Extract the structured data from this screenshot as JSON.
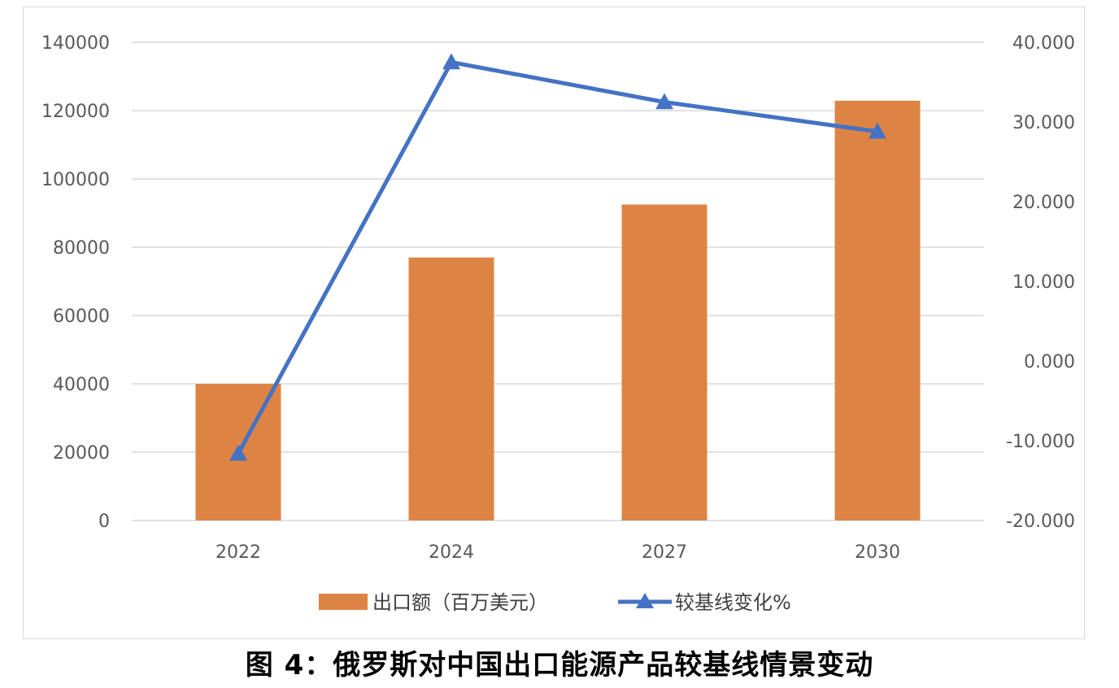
{
  "caption": "图 4：俄罗斯对中国出口能源产品较基线情景变动",
  "chart_data": {
    "type": "bar",
    "categories": [
      "2022",
      "2024",
      "2027",
      "2030"
    ],
    "series": [
      {
        "name": "出口额（百万美元）",
        "type": "bar",
        "axis": "left",
        "values": [
          40000,
          77000,
          92500,
          122900
        ],
        "color": "#DD8445"
      },
      {
        "name": "较基线变化%",
        "type": "line",
        "axis": "right",
        "marker": "triangle",
        "values": [
          -11.6,
          37.5,
          32.5,
          28.8
        ],
        "color": "#4472C4"
      }
    ],
    "y_left": {
      "min": 0,
      "max": 140000,
      "ticks": [
        "0",
        "20000",
        "40000",
        "60000",
        "80000",
        "100000",
        "120000",
        "140000"
      ]
    },
    "y_right": {
      "min": -20,
      "max": 40,
      "ticks": [
        "-20.000",
        "-10.000",
        "0.000",
        "10.000",
        "20.000",
        "30.000",
        "40.000"
      ]
    },
    "grid": true,
    "legend": "bottom"
  }
}
